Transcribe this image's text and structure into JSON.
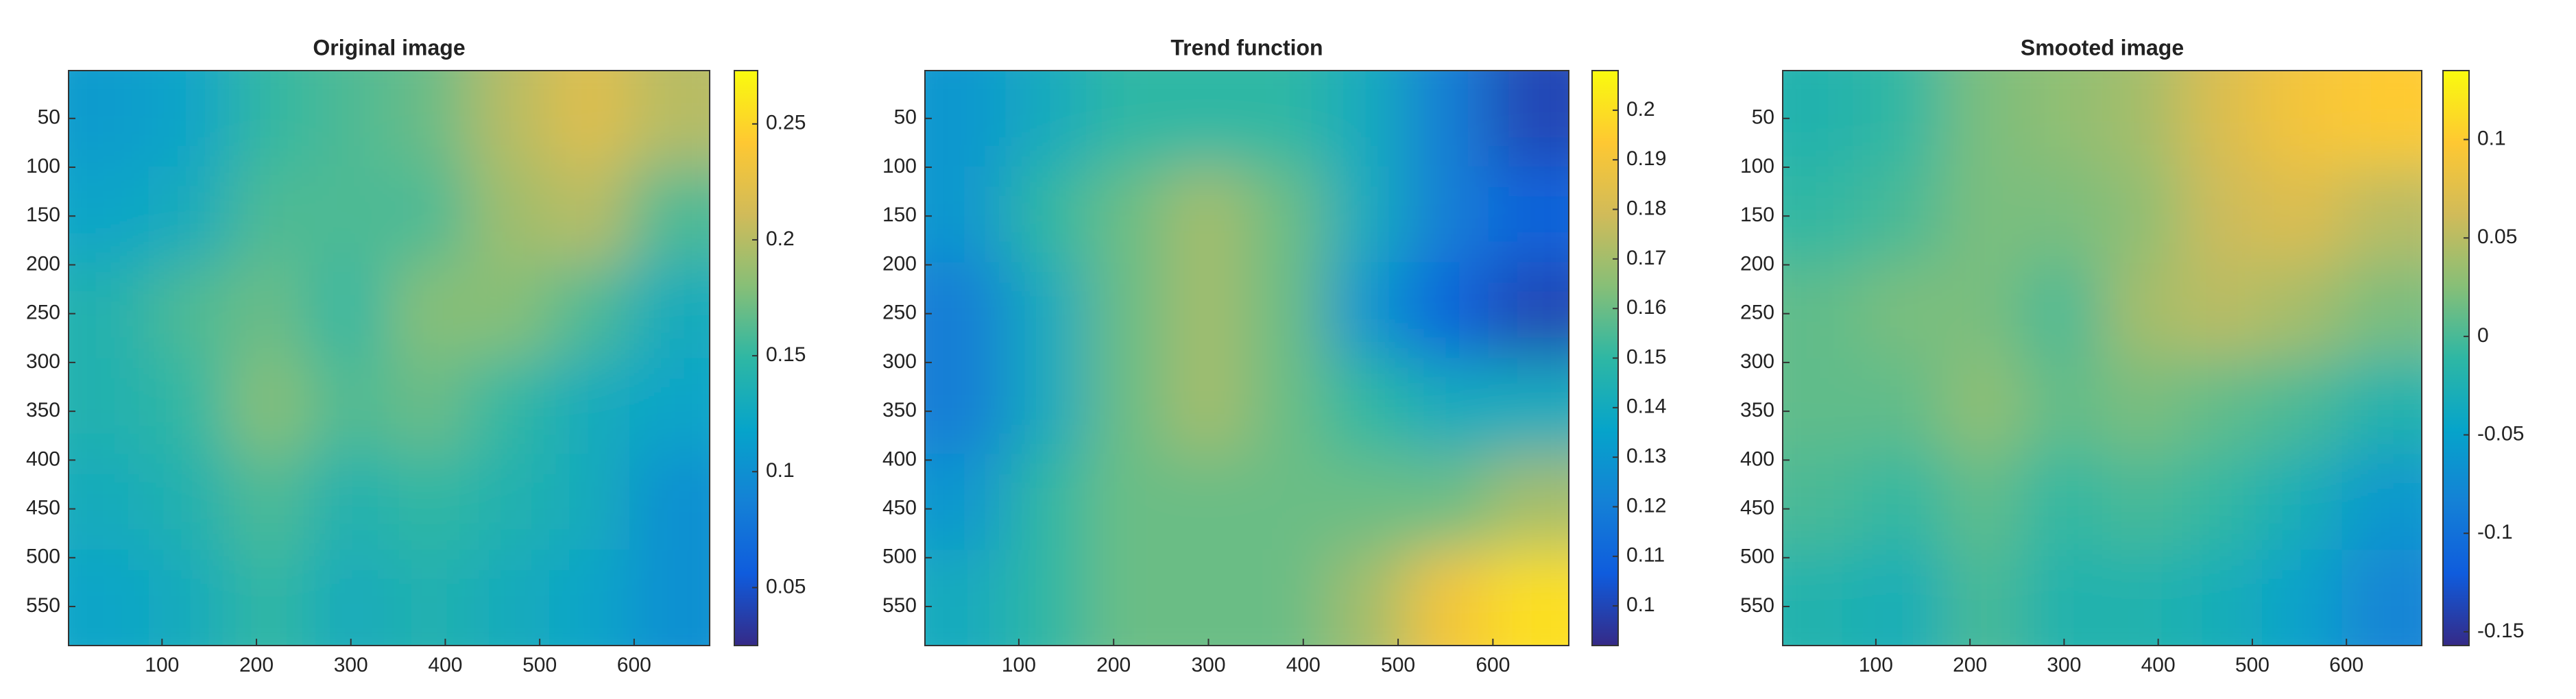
{
  "chart_data": [
    {
      "type": "heatmap",
      "title": "Original image",
      "xlim": [
        1,
        680
      ],
      "ylim": [
        1,
        590
      ],
      "yreverse": true,
      "xticks": [
        100,
        200,
        300,
        400,
        500,
        600
      ],
      "yticks": [
        50,
        100,
        150,
        200,
        250,
        300,
        350,
        400,
        450,
        500,
        550
      ],
      "clim": [
        0.025,
        0.273
      ],
      "cticks": [
        0.05,
        0.1,
        0.15,
        0.2,
        0.25
      ],
      "colormap": [
        "#352a87",
        "#0f5cdd",
        "#1481d6",
        "#06a4ca",
        "#2eb7a4",
        "#87bf77",
        "#d1bb59",
        "#fec832",
        "#f9fb0e"
      ],
      "z": [
        [
          0.11,
          0.12,
          0.15,
          0.16,
          0.17,
          0.2,
          0.22,
          0.2
        ],
        [
          0.12,
          0.13,
          0.16,
          0.16,
          0.16,
          0.19,
          0.2,
          0.16
        ],
        [
          0.14,
          0.16,
          0.17,
          0.15,
          0.18,
          0.18,
          0.16,
          0.13
        ],
        [
          0.14,
          0.15,
          0.18,
          0.16,
          0.17,
          0.15,
          0.13,
          0.12
        ],
        [
          0.13,
          0.14,
          0.16,
          0.14,
          0.15,
          0.14,
          0.13,
          0.1
        ],
        [
          0.12,
          0.13,
          0.15,
          0.13,
          0.14,
          0.13,
          0.12,
          0.1
        ]
      ]
    },
    {
      "type": "heatmap",
      "title": "Trend function",
      "xlim": [
        1,
        680
      ],
      "ylim": [
        1,
        590
      ],
      "yreverse": true,
      "xticks": [
        100,
        200,
        300,
        400,
        500,
        600
      ],
      "yticks": [
        50,
        100,
        150,
        200,
        250,
        300,
        350,
        400,
        450,
        500,
        550
      ],
      "clim": [
        0.092,
        0.208
      ],
      "cticks": [
        0.1,
        0.11,
        0.12,
        0.13,
        0.14,
        0.15,
        0.16,
        0.17,
        0.18,
        0.19,
        0.2
      ],
      "colormap": [
        "#352a87",
        "#0f5cdd",
        "#1481d6",
        "#06a4ca",
        "#2eb7a4",
        "#87bf77",
        "#d1bb59",
        "#fec832",
        "#f9fb0e"
      ],
      "z": [
        [
          0.13,
          0.14,
          0.15,
          0.15,
          0.15,
          0.14,
          0.12,
          0.1
        ],
        [
          0.13,
          0.15,
          0.16,
          0.17,
          0.16,
          0.14,
          0.12,
          0.11
        ],
        [
          0.12,
          0.14,
          0.16,
          0.17,
          0.16,
          0.13,
          0.11,
          0.1
        ],
        [
          0.12,
          0.14,
          0.16,
          0.17,
          0.16,
          0.15,
          0.14,
          0.14
        ],
        [
          0.13,
          0.15,
          0.16,
          0.16,
          0.16,
          0.16,
          0.16,
          0.17
        ],
        [
          0.14,
          0.15,
          0.16,
          0.16,
          0.16,
          0.17,
          0.19,
          0.2
        ]
      ]
    },
    {
      "type": "heatmap",
      "title": "Smooted image",
      "xlim": [
        1,
        680
      ],
      "ylim": [
        1,
        590
      ],
      "yreverse": true,
      "xticks": [
        100,
        200,
        300,
        400,
        500,
        600
      ],
      "yticks": [
        50,
        100,
        150,
        200,
        250,
        300,
        350,
        400,
        450,
        500,
        550
      ],
      "clim": [
        -0.157,
        0.135
      ],
      "cticks": [
        -0.15,
        -0.1,
        -0.05,
        0,
        0.05,
        0.1
      ],
      "colormap": [
        "#352a87",
        "#0f5cdd",
        "#1481d6",
        "#06a4ca",
        "#2eb7a4",
        "#87bf77",
        "#d1bb59",
        "#fec832",
        "#f9fb0e"
      ],
      "z": [
        [
          -0.02,
          -0.01,
          0.02,
          0.03,
          0.04,
          0.07,
          0.09,
          0.1
        ],
        [
          -0.01,
          0,
          0.02,
          0.02,
          0.03,
          0.06,
          0.07,
          0.05
        ],
        [
          0.01,
          0.02,
          0.02,
          0,
          0.04,
          0.05,
          0.04,
          0.02
        ],
        [
          0.01,
          0.01,
          0.03,
          0.01,
          0.02,
          0.01,
          0,
          -0.02
        ],
        [
          0,
          -0.01,
          0.01,
          -0.01,
          0,
          -0.01,
          -0.03,
          -0.06
        ],
        [
          -0.02,
          -0.03,
          0,
          -0.02,
          -0.02,
          -0.03,
          -0.05,
          -0.08
        ]
      ]
    }
  ]
}
